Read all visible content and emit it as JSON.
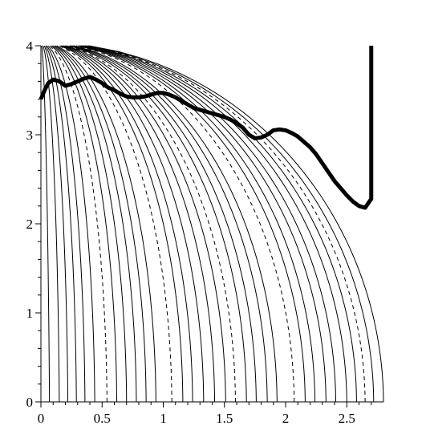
{
  "chart_data": {
    "type": "line",
    "title": "",
    "xlabel": "",
    "ylabel": "",
    "xlim": [
      0,
      2.8
    ],
    "ylim": [
      0,
      4
    ],
    "grid": false,
    "x_ticks": [
      {
        "value": 0,
        "label": "0"
      },
      {
        "value": 0.5,
        "label": "0.5"
      },
      {
        "value": 1,
        "label": "1"
      },
      {
        "value": 1.5,
        "label": "1.5"
      },
      {
        "value": 2,
        "label": "2"
      },
      {
        "value": 2.5,
        "label": "2.5"
      }
    ],
    "y_ticks": [
      {
        "value": 0,
        "label": "0"
      },
      {
        "value": 1,
        "label": "1"
      },
      {
        "value": 2,
        "label": "2"
      },
      {
        "value": 3,
        "label": "3"
      },
      {
        "value": 4,
        "label": "4"
      }
    ],
    "contours": {
      "level_foot_x": [
        0.05,
        0.13,
        0.2,
        0.27,
        0.34,
        0.42,
        0.52,
        0.6,
        0.68,
        0.76,
        0.84,
        0.92,
        1.05,
        1.14,
        1.22,
        1.31,
        1.4,
        1.49,
        1.57,
        1.66,
        1.74,
        1.83,
        1.91,
        2.05,
        2.14,
        2.22,
        2.31,
        2.39,
        2.48,
        2.56,
        2.63,
        2.7,
        2.78
      ],
      "dashed_level_foot_x": [
        0.52,
        1.05,
        1.57,
        2.05,
        2.63
      ],
      "max_height": 4.0
    },
    "series": [
      {
        "style": "thick",
        "color": "#000000",
        "x": [
          0,
          0.03,
          0.06,
          0.1,
          0.15,
          0.2,
          0.25,
          0.3,
          0.35,
          0.4,
          0.45,
          0.5,
          0.55,
          0.6,
          0.65,
          0.7,
          0.75,
          0.8,
          0.85,
          0.9,
          0.95,
          1.0,
          1.05,
          1.1,
          1.15,
          1.2,
          1.25,
          1.3,
          1.35,
          1.4,
          1.45,
          1.5,
          1.55,
          1.6,
          1.65,
          1.7,
          1.75,
          1.8,
          1.85,
          1.9,
          1.95,
          2.0,
          2.05,
          2.1,
          2.15,
          2.2,
          2.25,
          2.3,
          2.35,
          2.4,
          2.45,
          2.5,
          2.55,
          2.6,
          2.65,
          2.7,
          2.7
        ],
        "y": [
          3.4,
          3.5,
          3.58,
          3.62,
          3.6,
          3.55,
          3.57,
          3.6,
          3.63,
          3.65,
          3.62,
          3.58,
          3.53,
          3.5,
          3.46,
          3.43,
          3.42,
          3.42,
          3.43,
          3.45,
          3.47,
          3.47,
          3.45,
          3.42,
          3.38,
          3.34,
          3.3,
          3.28,
          3.26,
          3.24,
          3.22,
          3.2,
          3.17,
          3.13,
          3.08,
          3.0,
          2.96,
          2.97,
          3.0,
          3.05,
          3.06,
          3.05,
          3.02,
          2.98,
          2.92,
          2.86,
          2.78,
          2.68,
          2.58,
          2.48,
          2.4,
          2.32,
          2.25,
          2.2,
          2.18,
          2.28,
          4.0
        ]
      }
    ]
  }
}
